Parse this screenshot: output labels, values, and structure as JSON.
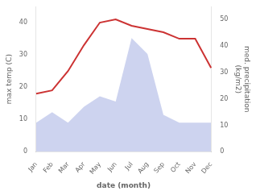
{
  "chart_data": {
    "type": "line",
    "categories": [
      "Jan",
      "Feb",
      "Mar",
      "Apr",
      "May",
      "Jun",
      "Jul",
      "Aug",
      "Sep",
      "Oct",
      "Nov",
      "Dec"
    ],
    "series": [
      {
        "type": "area",
        "color": "#b8c0e8",
        "axis": "y2",
        "values": [
          11,
          15,
          11,
          17,
          21,
          19,
          43,
          37,
          14,
          11,
          11,
          11
        ]
      },
      {
        "type": "line",
        "color": "#cc3333",
        "values": [
          18,
          19,
          25,
          33,
          40,
          41,
          39,
          38,
          37,
          35,
          35,
          26
        ]
      }
    ],
    "xlabel": "date (month)",
    "ylabel": "max temp (C)",
    "y2label": "med. precipitation\n(kg/m2)",
    "ylim": [
      0,
      45
    ],
    "yticks": [
      0,
      10,
      20,
      30,
      40
    ],
    "y2lim": [
      0,
      55
    ],
    "y2ticks": [
      0,
      10,
      20,
      30,
      40,
      50
    ],
    "grid": false
  }
}
